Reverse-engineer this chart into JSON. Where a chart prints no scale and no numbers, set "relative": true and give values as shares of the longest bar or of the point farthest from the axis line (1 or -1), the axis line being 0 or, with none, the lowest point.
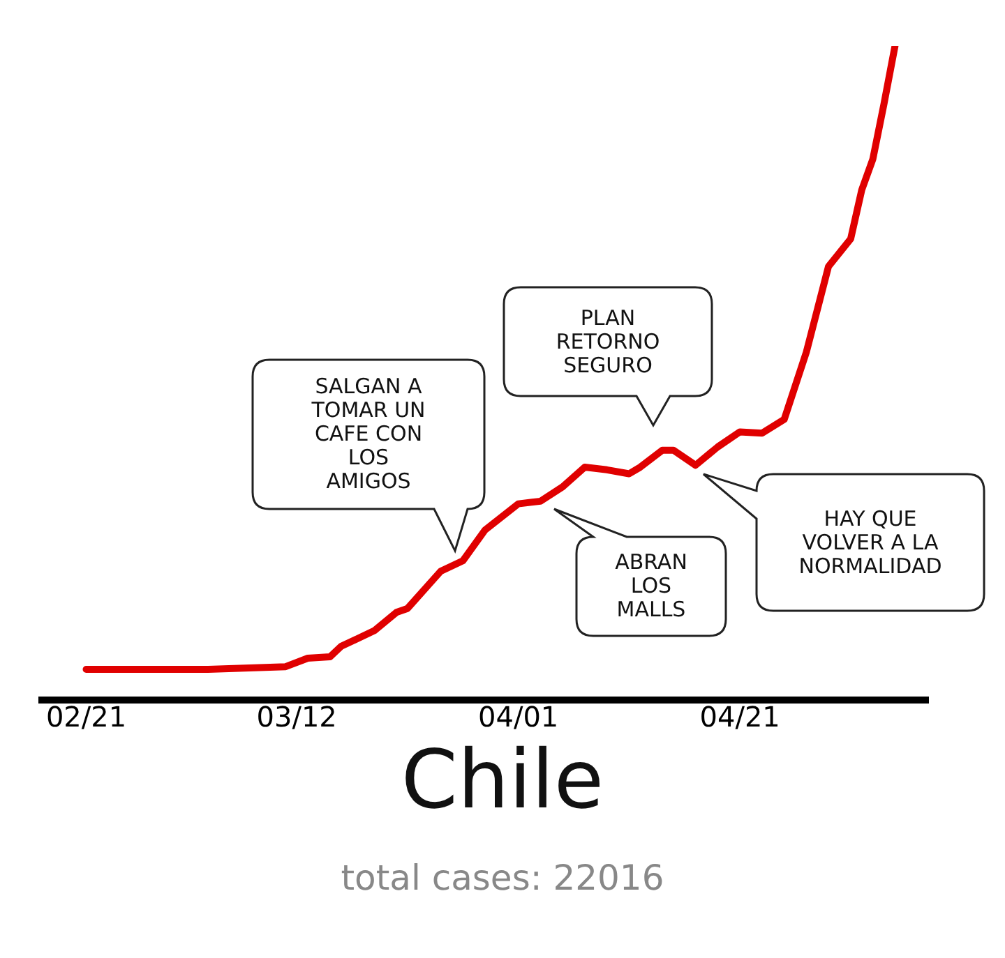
{
  "chart_data": {
    "type": "line",
    "title": "Chile",
    "subtitle": "total cases: 22016",
    "relative": true,
    "grid": false,
    "legend": false,
    "marker": "none",
    "line_style": "solid",
    "x": [
      "--02-21",
      "--03-04",
      "--03-11",
      "--03-13",
      "--03-15",
      "--03-16",
      "--03-19",
      "--03-21",
      "--03-22",
      "--03-25",
      "--03-27",
      "--03-29",
      "--04-01",
      "--04-03",
      "--04-05",
      "--04-07",
      "--04-09",
      "--04-11",
      "--04-12",
      "--04-14",
      "--04-15",
      "--04-17",
      "--04-19",
      "--04-21",
      "--04-23",
      "--04-25",
      "--04-27",
      "--04-29",
      "--05-01",
      "--05-02",
      "--05-03",
      "--05-04",
      "--05-05"
    ],
    "xlim": [
      "--02-17",
      "--05-08"
    ],
    "xticks": [
      {
        "value": "--02-21",
        "label": "02/21"
      },
      {
        "value": "--03-12",
        "label": "03/12"
      },
      {
        "value": "--04-01",
        "label": "04/01"
      },
      {
        "value": "--04-21",
        "label": "04/21"
      }
    ],
    "series": [
      {
        "color": "#e00000",
        "values": [
          0.047,
          0.047,
          0.051,
          0.064,
          0.066,
          0.082,
          0.106,
          0.134,
          0.14,
          0.197,
          0.213,
          0.26,
          0.3,
          0.304,
          0.326,
          0.356,
          0.352,
          0.346,
          0.356,
          0.382,
          0.382,
          0.359,
          0.387,
          0.41,
          0.408,
          0.429,
          0.532,
          0.663,
          0.705,
          0.78,
          0.827,
          0.911,
          1
        ]
      }
    ],
    "annotations": [
      "SALGAN A\nTOMAR UN\nCAFE CON\nLOS\nAMIGOS",
      "ABRAN\nLOS\nMALLS",
      "PLAN\nRETORNO\nSEGURO",
      "HAY QUE\nVOLVER A LA\nNORMALIDAD"
    ]
  }
}
